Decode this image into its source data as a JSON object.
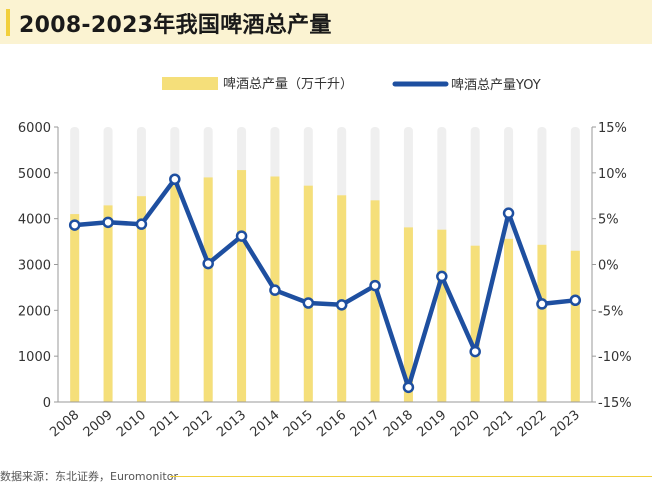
{
  "title": "2008-2023年我国啤酒总产量",
  "source": "数据来源：东北证券，Euromonitor",
  "colors": {
    "bar": "#f5df7a",
    "bar_bg": "#efefef",
    "line": "#1e4fa0",
    "title_bg": "#fbf3d2",
    "accent": "#f2cf3b"
  },
  "chart_data": {
    "type": "bar+line",
    "categories": [
      "2008",
      "2009",
      "2010",
      "2011",
      "2012",
      "2013",
      "2014",
      "2015",
      "2016",
      "2017",
      "2018",
      "2019",
      "2020",
      "2021",
      "2022",
      "2023"
    ],
    "series": [
      {
        "name": "啤酒总产量（万千升）",
        "type": "bar",
        "axis": "left",
        "values": [
          4100,
          4290,
          4490,
          4900,
          4900,
          5060,
          4920,
          4720,
          4510,
          4400,
          3810,
          3760,
          3410,
          3560,
          3430,
          3300
        ]
      },
      {
        "name": "啤酒总产量YOY",
        "type": "line",
        "axis": "right",
        "values": [
          4.3,
          4.6,
          4.4,
          9.3,
          0.1,
          3.1,
          -2.8,
          -4.2,
          -4.4,
          -2.3,
          -13.4,
          -1.3,
          -9.5,
          5.6,
          -4.3,
          -3.9
        ]
      }
    ],
    "y_left": {
      "min": 0,
      "max": 6000,
      "ticks": [
        "0",
        "1000",
        "2000",
        "3000",
        "4000",
        "5000",
        "6000"
      ]
    },
    "y_right": {
      "min": -15,
      "max": 15,
      "ticks": [
        "-15%",
        "-10%",
        "-5%",
        "0%",
        "5%",
        "10%",
        "15%"
      ]
    },
    "legend": {
      "position": "top-center"
    },
    "grid": false
  }
}
